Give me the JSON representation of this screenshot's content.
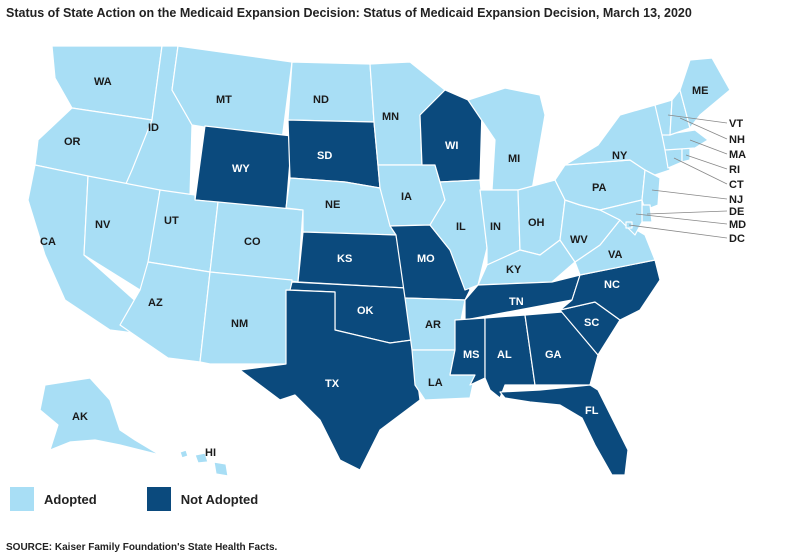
{
  "title": "Status of State Action on the Medicaid Expansion Decision: Status of Medicaid Expansion Decision, March 13, 2020",
  "source": "SOURCE: Kaiser Family Foundation's State Health Facts.",
  "colors": {
    "adopted": "#a8def5",
    "not_adopted": "#0b4a7d"
  },
  "legend": [
    {
      "label": "Adopted",
      "status": "adopted"
    },
    {
      "label": "Not Adopted",
      "status": "not_adopted"
    }
  ],
  "states": {
    "WA": "adopted",
    "OR": "adopted",
    "CA": "adopted",
    "ID": "adopted",
    "NV": "adopted",
    "MT": "adopted",
    "WY": "not_adopted",
    "UT": "adopted",
    "AZ": "adopted",
    "CO": "adopted",
    "NM": "adopted",
    "ND": "adopted",
    "SD": "not_adopted",
    "NE": "adopted",
    "KS": "not_adopted",
    "OK": "not_adopted",
    "TX": "not_adopted",
    "MN": "adopted",
    "IA": "adopted",
    "MO": "not_adopted",
    "AR": "adopted",
    "LA": "adopted",
    "WI": "not_adopted",
    "IL": "adopted",
    "MI": "adopted",
    "IN": "adopted",
    "OH": "adopted",
    "KY": "adopted",
    "TN": "not_adopted",
    "MS": "not_adopted",
    "AL": "not_adopted",
    "GA": "not_adopted",
    "FL": "not_adopted",
    "SC": "not_adopted",
    "NC": "not_adopted",
    "VA": "adopted",
    "WV": "adopted",
    "PA": "adopted",
    "NY": "adopted",
    "ME": "adopted",
    "VT": "adopted",
    "NH": "adopted",
    "MA": "adopted",
    "RI": "adopted",
    "CT": "adopted",
    "NJ": "adopted",
    "DE": "adopted",
    "MD": "adopted",
    "DC": "adopted",
    "AK": "adopted",
    "HI": "adopted"
  }
}
